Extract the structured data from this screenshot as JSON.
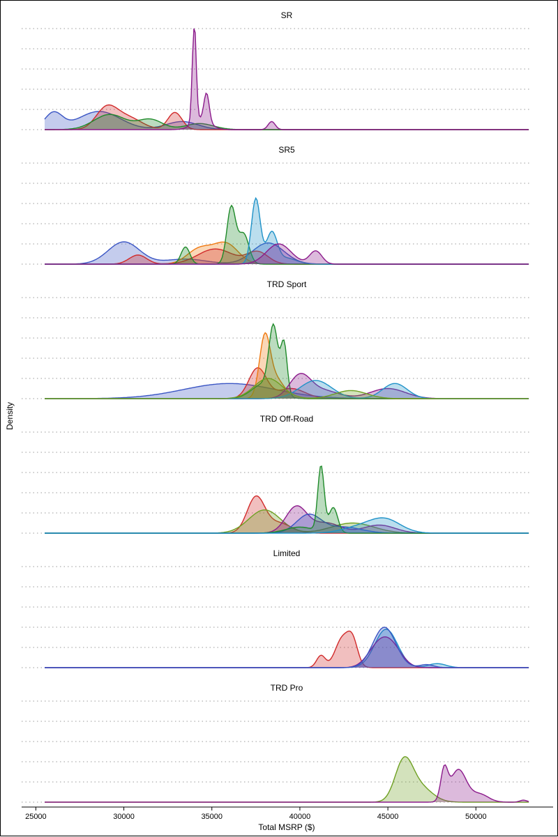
{
  "chart_data": {
    "type": "area",
    "xlabel": "Total MSRP ($)",
    "ylabel": "Density",
    "xlim": [
      25500,
      53000
    ],
    "x_ticks": [
      25000,
      30000,
      35000,
      40000,
      45000,
      50000
    ],
    "x_tick_labels": [
      "25000",
      "30000",
      "35000",
      "40000",
      "45000",
      "50000"
    ],
    "grid": "horizontal dotted",
    "colors": {
      "blue": "#3a55c4",
      "red": "#d12a2a",
      "green": "#1f8a2a",
      "purple": "#8b1a8b",
      "orange": "#f07a12",
      "teal": "#1f92c8",
      "lime": "#6ea022"
    },
    "panels": [
      {
        "title": "SR",
        "series": [
          {
            "color": "blue",
            "peaks": [
              [
                26000,
                0.16,
                500
              ],
              [
                28600,
                0.18,
                1200
              ],
              [
                33300,
                0.08,
                900
              ]
            ]
          },
          {
            "color": "red",
            "peaks": [
              [
                29000,
                0.2,
                600
              ],
              [
                30200,
                0.12,
                800
              ],
              [
                32900,
                0.17,
                400
              ]
            ]
          },
          {
            "color": "green",
            "peaks": [
              [
                29200,
                0.15,
                900
              ],
              [
                31500,
                0.1,
                700
              ],
              [
                34300,
                0.06,
                800
              ]
            ]
          },
          {
            "color": "purple",
            "peaks": [
              [
                34000,
                1.0,
                110
              ],
              [
                34700,
                0.28,
                150
              ],
              [
                34400,
                0.1,
                500
              ],
              [
                38400,
                0.08,
                200
              ]
            ]
          }
        ]
      },
      {
        "title": "SR5",
        "series": [
          {
            "color": "blue",
            "peaks": [
              [
                30000,
                0.22,
                900
              ],
              [
                33500,
                0.05,
                1200
              ],
              [
                38200,
                0.21,
                900
              ]
            ]
          },
          {
            "color": "orange",
            "peaks": [
              [
                34300,
                0.15,
                700
              ],
              [
                35800,
                0.2,
                700
              ]
            ]
          },
          {
            "color": "red",
            "peaks": [
              [
                30800,
                0.09,
                500
              ],
              [
                35200,
                0.15,
                1000
              ],
              [
                37600,
                0.12,
                600
              ]
            ]
          },
          {
            "color": "green",
            "peaks": [
              [
                33500,
                0.17,
                250
              ],
              [
                36100,
                0.56,
                250
              ],
              [
                36800,
                0.3,
                300
              ]
            ]
          },
          {
            "color": "teal",
            "peaks": [
              [
                37500,
                0.65,
                250
              ],
              [
                38400,
                0.3,
                300
              ],
              [
                39200,
                0.06,
                600
              ]
            ]
          },
          {
            "color": "purple",
            "peaks": [
              [
                38800,
                0.2,
                700
              ],
              [
                40900,
                0.13,
                350
              ]
            ]
          }
        ]
      },
      {
        "title": "TRD Sport",
        "series": [
          {
            "color": "blue",
            "peaks": [
              [
                36000,
                0.15,
                2600
              ]
            ]
          },
          {
            "color": "red",
            "peaks": [
              [
                37600,
                0.3,
                500
              ],
              [
                39500,
                0.1,
                800
              ]
            ]
          },
          {
            "color": "orange",
            "peaks": [
              [
                38000,
                0.55,
                300
              ],
              [
                38600,
                0.2,
                500
              ]
            ]
          },
          {
            "color": "green",
            "peaks": [
              [
                38500,
                0.62,
                250
              ],
              [
                39100,
                0.5,
                180
              ],
              [
                38000,
                0.15,
                700
              ]
            ]
          },
          {
            "color": "purple",
            "peaks": [
              [
                40000,
                0.22,
                600
              ],
              [
                41300,
                0.08,
                900
              ],
              [
                45000,
                0.1,
                1000
              ]
            ]
          },
          {
            "color": "teal",
            "peaks": [
              [
                40900,
                0.18,
                900
              ],
              [
                45400,
                0.15,
                700
              ]
            ]
          },
          {
            "color": "lime",
            "peaks": [
              [
                38200,
                0.2,
                800
              ],
              [
                42900,
                0.08,
                900
              ]
            ]
          }
        ]
      },
      {
        "title": "TRD Off-Road",
        "series": [
          {
            "color": "red",
            "peaks": [
              [
                37500,
                0.35,
                500
              ],
              [
                38800,
                0.1,
                700
              ]
            ]
          },
          {
            "color": "lime",
            "peaks": [
              [
                38000,
                0.23,
                900
              ],
              [
                43000,
                0.1,
                1200
              ]
            ]
          },
          {
            "color": "purple",
            "peaks": [
              [
                39800,
                0.26,
                600
              ],
              [
                41500,
                0.1,
                800
              ],
              [
                44500,
                0.08,
                900
              ]
            ]
          },
          {
            "color": "blue",
            "peaks": [
              [
                40500,
                0.18,
                700
              ],
              [
                42500,
                0.06,
                1000
              ]
            ]
          },
          {
            "color": "green",
            "peaks": [
              [
                41200,
                0.65,
                180
              ],
              [
                41900,
                0.25,
                250
              ],
              [
                40000,
                0.06,
                800
              ]
            ]
          },
          {
            "color": "teal",
            "peaks": [
              [
                44800,
                0.14,
                900
              ],
              [
                43200,
                0.05,
                900
              ]
            ]
          }
        ]
      },
      {
        "title": "Limited",
        "series": [
          {
            "color": "red",
            "peaks": [
              [
                41200,
                0.12,
                250
              ],
              [
                42400,
                0.28,
                400
              ],
              [
                43000,
                0.24,
                300
              ]
            ]
          },
          {
            "color": "teal",
            "peaks": [
              [
                44900,
                0.38,
                650
              ],
              [
                47800,
                0.04,
                500
              ]
            ]
          },
          {
            "color": "purple",
            "peaks": [
              [
                44400,
                0.18,
                600
              ],
              [
                45200,
                0.2,
                600
              ]
            ]
          },
          {
            "color": "blue",
            "peaks": [
              [
                44800,
                0.4,
                650
              ],
              [
                47200,
                0.03,
                400
              ]
            ]
          }
        ]
      },
      {
        "title": "TRD Pro",
        "series": [
          {
            "color": "lime",
            "peaks": [
              [
                45900,
                0.38,
                500
              ],
              [
                46800,
                0.15,
                700
              ]
            ]
          },
          {
            "color": "purple",
            "peaks": [
              [
                48200,
                0.3,
                200
              ],
              [
                49000,
                0.32,
                450
              ],
              [
                50200,
                0.08,
                500
              ],
              [
                52700,
                0.02,
                200
              ]
            ]
          }
        ]
      }
    ]
  }
}
